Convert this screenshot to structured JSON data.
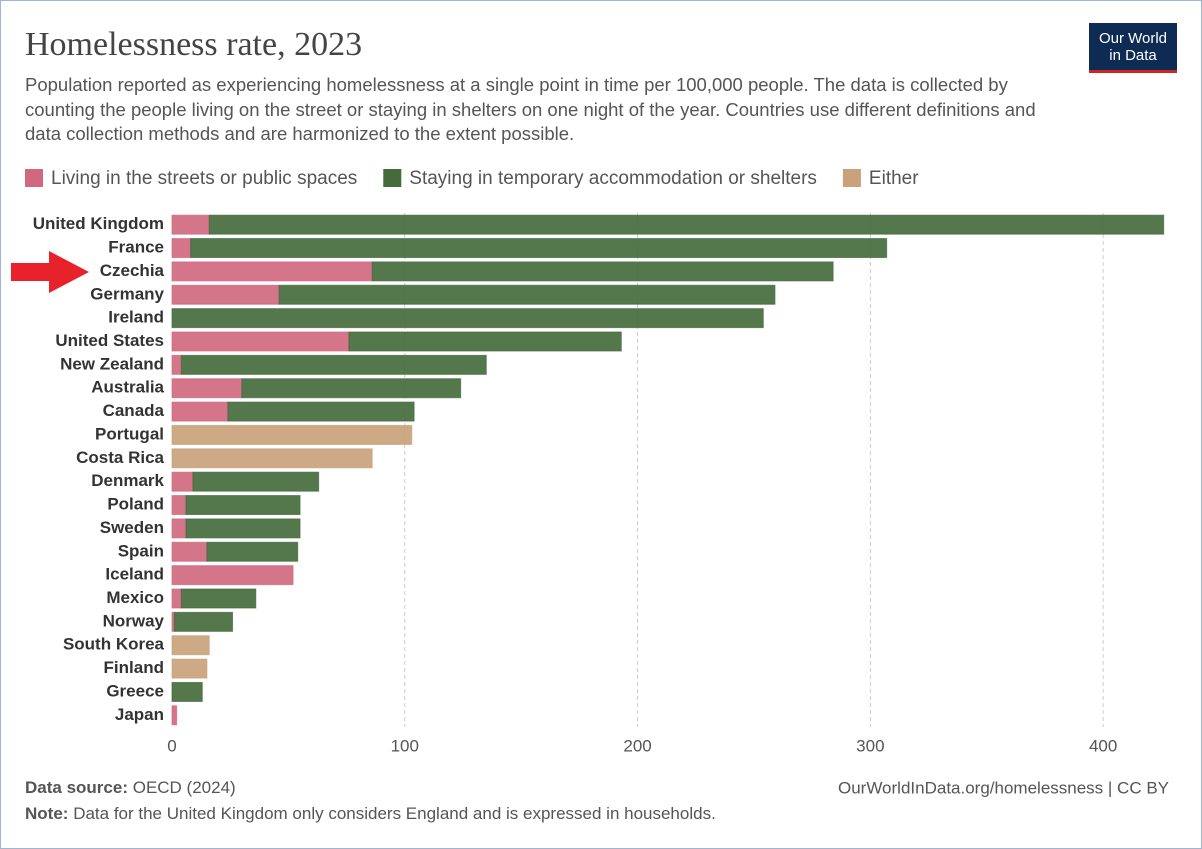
{
  "chart_data": {
    "type": "stacked-bar-horizontal",
    "title": "Homelessness rate, 2023",
    "subtitle": "Population reported as experiencing homelessness at a single point in time per 100,000 people. The data is collected by counting the people living on the street or staying in shelters on one night of the year. Countries use different definitions and data collection methods and are harmonized to the extent possible.",
    "logo": [
      "Our World",
      "in Data"
    ],
    "categories": [
      "United Kingdom",
      "France",
      "Czechia",
      "Germany",
      "Ireland",
      "United States",
      "New Zealand",
      "Australia",
      "Canada",
      "Portugal",
      "Costa Rica",
      "Denmark",
      "Poland",
      "Sweden",
      "Spain",
      "Iceland",
      "Mexico",
      "Norway",
      "South Korea",
      "Finland",
      "Greece",
      "Japan"
    ],
    "series": [
      {
        "name": "Living in the streets or public spaces",
        "color": "#d0697f",
        "values": [
          16,
          8,
          86,
          46,
          null,
          76,
          4,
          30,
          24,
          null,
          null,
          9,
          6,
          6,
          15,
          52,
          4,
          1,
          null,
          null,
          null,
          2
        ]
      },
      {
        "name": "Staying in temporary accommodation or shelters",
        "color": "#456b3d",
        "values": [
          410,
          299,
          198,
          213,
          254,
          117,
          131,
          94,
          80,
          null,
          null,
          54,
          49,
          49,
          39,
          null,
          32,
          25,
          null,
          null,
          13,
          null
        ]
      },
      {
        "name": "Either",
        "color": "#c9a27b",
        "values": [
          null,
          null,
          null,
          null,
          null,
          null,
          null,
          null,
          null,
          103,
          86,
          null,
          null,
          null,
          null,
          null,
          null,
          null,
          16,
          15,
          null,
          null
        ]
      }
    ],
    "xlim": [
      0,
      427
    ],
    "xticks": [
      0,
      100,
      200,
      300,
      400
    ],
    "grid": true,
    "source_label": "Data source:",
    "source": "OECD (2024)",
    "url": "OurWorldInData.org/homelessness | CC BY",
    "note_label": "Note:",
    "note": "Data for the United Kingdom only considers England and is expressed in households."
  }
}
